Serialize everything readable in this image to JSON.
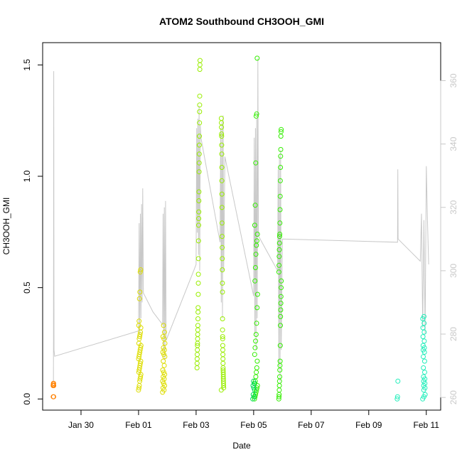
{
  "chart_data": {
    "type": "scatter",
    "title": "ATOM2 Southbound CH3OOH_GMI",
    "xlabel": "Date",
    "ylabel": "CH3OOH_GMI",
    "x_axis": {
      "unit": "date",
      "range": [
        "2017-01-28T16:00",
        "2017-02-11T12:00"
      ],
      "ticks": [
        {
          "date": "2017-01-30",
          "label": "Jan 30"
        },
        {
          "date": "2017-02-01",
          "label": "Feb 01"
        },
        {
          "date": "2017-02-03",
          "label": "Feb 03"
        },
        {
          "date": "2017-02-05",
          "label": "Feb 05"
        },
        {
          "date": "2017-02-07",
          "label": "Feb 07"
        },
        {
          "date": "2017-02-09",
          "label": "Feb 09"
        },
        {
          "date": "2017-02-11",
          "label": "Feb 11"
        }
      ]
    },
    "y_axis": {
      "range": [
        -0.05,
        1.6
      ],
      "ticks": [
        {
          "value": 0.0,
          "label": "0.0"
        },
        {
          "value": 0.5,
          "label": "0.5"
        },
        {
          "value": 1.0,
          "label": "1.0"
        },
        {
          "value": 1.5,
          "label": "1.5"
        }
      ]
    },
    "y2_axis": {
      "range": [
        256,
        372
      ],
      "color": "#c8c8c8",
      "ticks": [
        {
          "value": 260,
          "label": "260"
        },
        {
          "value": 280,
          "label": "280"
        },
        {
          "value": 300,
          "label": "300"
        },
        {
          "value": 320,
          "label": "320"
        },
        {
          "value": 340,
          "label": "340"
        },
        {
          "value": 360,
          "label": "360"
        }
      ]
    },
    "grid": false,
    "legend": "none",
    "secondary_line_color": "#c8c8c8",
    "series": [
      {
        "color": "#ff8000",
        "flights": [
          {
            "center": "2017-01-29T01:00",
            "spread_hours": 0.5,
            "values": [
              0.06,
              0.07,
              0.065,
              0.06,
              0.07,
              0.01,
              0.01,
              0.06
            ]
          }
        ]
      },
      {
        "color": "#dddd00",
        "flights": [
          {
            "center": "2017-02-01T01:00",
            "spread_hours": 2,
            "values": [
              0.04,
              0.05,
              0.06,
              0.08,
              0.09,
              0.1,
              0.11,
              0.12,
              0.13,
              0.14,
              0.15,
              0.16,
              0.17,
              0.18,
              0.19,
              0.2,
              0.21,
              0.22,
              0.23,
              0.24,
              0.25,
              0.27,
              0.28,
              0.29,
              0.3,
              0.32,
              0.33,
              0.35,
              0.45,
              0.48,
              0.57,
              0.58
            ]
          },
          {
            "center": "2017-02-01T21:00",
            "spread_hours": 2,
            "values": [
              0.03,
              0.04,
              0.05,
              0.06,
              0.07,
              0.08,
              0.09,
              0.1,
              0.11,
              0.12,
              0.13,
              0.15,
              0.17,
              0.19,
              0.2,
              0.21,
              0.22,
              0.23,
              0.25,
              0.27,
              0.28,
              0.3,
              0.33
            ]
          }
        ]
      },
      {
        "color": "#99ee00",
        "flights": [
          {
            "center": "2017-02-03T02:00",
            "spread_hours": 2.5,
            "values": [
              0.14,
              0.16,
              0.18,
              0.2,
              0.22,
              0.24,
              0.25,
              0.27,
              0.29,
              0.31,
              0.33,
              0.36,
              0.39,
              0.41,
              0.47,
              0.52,
              0.56,
              0.63,
              0.71,
              0.78,
              0.81,
              0.84,
              0.89,
              0.93,
              1.02,
              1.06,
              1.1,
              1.14,
              1.18,
              1.24,
              1.29,
              1.32,
              1.36,
              1.48,
              1.5,
              1.52
            ]
          },
          {
            "center": "2017-02-03T22:00",
            "spread_hours": 2,
            "values": [
              0.04,
              0.05,
              0.06,
              0.07,
              0.08,
              0.09,
              0.1,
              0.11,
              0.12,
              0.13,
              0.14,
              0.16,
              0.18,
              0.2,
              0.22,
              0.24,
              0.27,
              0.28,
              0.31,
              0.36,
              0.48,
              0.52,
              0.58,
              0.63,
              0.68,
              0.73,
              0.79,
              0.86,
              0.92,
              0.98,
              1.04,
              1.1,
              1.14,
              1.18,
              1.19,
              1.22,
              1.24,
              1.26
            ]
          }
        ]
      },
      {
        "color": "#33ee00",
        "flights": [
          {
            "center": "2017-02-05T02:00",
            "spread_hours": 2.5,
            "values": [
              0.0,
              0.01,
              0.02,
              0.03,
              0.04,
              0.05,
              0.06,
              0.07,
              0.08,
              0.1,
              0.12,
              0.14,
              0.17,
              0.2,
              0.23,
              0.26,
              0.29,
              0.34,
              0.41,
              0.47,
              0.53,
              0.59,
              0.65,
              0.69,
              0.71,
              0.74,
              0.78,
              0.87,
              1.06,
              1.27,
              1.28,
              1.53
            ]
          },
          {
            "center": "2017-02-05T22:00",
            "spread_hours": 2,
            "values": [
              0.0,
              0.01,
              0.02,
              0.04,
              0.06,
              0.08,
              0.1,
              0.13,
              0.15,
              0.17,
              0.24,
              0.33,
              0.37,
              0.4,
              0.43,
              0.46,
              0.5,
              0.53,
              0.57,
              0.6,
              0.64,
              0.67,
              0.7,
              0.73,
              0.74,
              0.79,
              0.85,
              0.91,
              0.98,
              1.04,
              1.09,
              1.12,
              1.18,
              1.2,
              1.21
            ]
          }
        ]
      },
      {
        "color": "#00dd55",
        "flights": [
          {
            "center": "2017-02-05T00:00",
            "spread_hours": 1.5,
            "values": [
              0.0,
              0.01,
              0.02,
              0.04,
              0.05,
              0.06,
              0.07,
              0.08
            ]
          }
        ]
      },
      {
        "color": "#22eebb",
        "flights": [
          {
            "center": "2017-02-10T00:00",
            "spread_hours": 0.6,
            "values": [
              0.0,
              0.01,
              0.08
            ]
          },
          {
            "center": "2017-02-10T22:00",
            "spread_hours": 2,
            "values": [
              0.0,
              0.01,
              0.02,
              0.04,
              0.05,
              0.06,
              0.07,
              0.08,
              0.09,
              0.1,
              0.12,
              0.14,
              0.17,
              0.19,
              0.21,
              0.22,
              0.23,
              0.24,
              0.26,
              0.28,
              0.3,
              0.32,
              0.34,
              0.36,
              0.37
            ]
          }
        ]
      }
    ],
    "secondary_line": {
      "unit": "right_axis",
      "points": [
        [
          "2017-01-29T01:00",
          265
        ],
        [
          "2017-01-29T01:15",
          363
        ],
        [
          "2017-01-29T01:30",
          275
        ],
        [
          "2017-01-29T02:00",
          273
        ],
        [
          "2017-02-01T00:00",
          281
        ],
        [
          "2017-02-01T00:30",
          315
        ],
        [
          "2017-02-01T01:00",
          280
        ],
        [
          "2017-02-01T01:30",
          318
        ],
        [
          "2017-02-01T02:00",
          285
        ],
        [
          "2017-02-01T02:30",
          321
        ],
        [
          "2017-02-01T03:00",
          290
        ],
        [
          "2017-02-01T03:30",
          326
        ],
        [
          "2017-02-01T04:00",
          293
        ],
        [
          "2017-02-01T12:00",
          287
        ],
        [
          "2017-02-01T20:00",
          283
        ],
        [
          "2017-02-01T20:30",
          318
        ],
        [
          "2017-02-01T21:00",
          275
        ],
        [
          "2017-02-01T21:30",
          320
        ],
        [
          "2017-02-01T22:00",
          272
        ],
        [
          "2017-02-01T22:30",
          322
        ],
        [
          "2017-02-01T23:00",
          278
        ],
        [
          "2017-02-02T22:00",
          300
        ],
        [
          "2017-02-03T00:00",
          302
        ],
        [
          "2017-02-03T00:30",
          345
        ],
        [
          "2017-02-03T01:00",
          312
        ],
        [
          "2017-02-03T01:30",
          348
        ],
        [
          "2017-02-03T02:00",
          305
        ],
        [
          "2017-02-03T02:30",
          352
        ],
        [
          "2017-02-03T03:00",
          300
        ],
        [
          "2017-02-03T03:30",
          346
        ],
        [
          "2017-02-03T04:00",
          342
        ],
        [
          "2017-02-03T20:00",
          309
        ],
        [
          "2017-02-03T20:30",
          345
        ],
        [
          "2017-02-03T21:00",
          290
        ],
        [
          "2017-02-03T21:30",
          347
        ],
        [
          "2017-02-03T22:00",
          285
        ],
        [
          "2017-02-03T22:30",
          349
        ],
        [
          "2017-02-03T23:00",
          300
        ],
        [
          "2017-02-04T00:00",
          336
        ],
        [
          "2017-02-05T00:00",
          292
        ],
        [
          "2017-02-05T00:30",
          342
        ],
        [
          "2017-02-05T01:00",
          280
        ],
        [
          "2017-02-05T01:30",
          345
        ],
        [
          "2017-02-05T02:00",
          275
        ],
        [
          "2017-02-05T02:30",
          348
        ],
        [
          "2017-02-05T03:00",
          285
        ],
        [
          "2017-02-05T03:30",
          367
        ],
        [
          "2017-02-05T04:00",
          311
        ],
        [
          "2017-02-05T20:00",
          300
        ],
        [
          "2017-02-05T20:30",
          332
        ],
        [
          "2017-02-05T21:00",
          270
        ],
        [
          "2017-02-05T21:30",
          336
        ],
        [
          "2017-02-05T22:00",
          265
        ],
        [
          "2017-02-05T22:30",
          338
        ],
        [
          "2017-02-05T23:00",
          275
        ],
        [
          "2017-02-06T00:00",
          310
        ],
        [
          "2017-02-10T00:00",
          309
        ],
        [
          "2017-02-10T00:15",
          332
        ],
        [
          "2017-02-10T00:30",
          310
        ],
        [
          "2017-02-10T19:00",
          303
        ],
        [
          "2017-02-10T20:00",
          318
        ],
        [
          "2017-02-10T21:00",
          282
        ],
        [
          "2017-02-10T22:00",
          316
        ],
        [
          "2017-02-10T23:00",
          280
        ],
        [
          "2017-02-11T00:00",
          333
        ],
        [
          "2017-02-11T01:00",
          316
        ],
        [
          "2017-02-11T02:00",
          302
        ]
      ]
    }
  }
}
